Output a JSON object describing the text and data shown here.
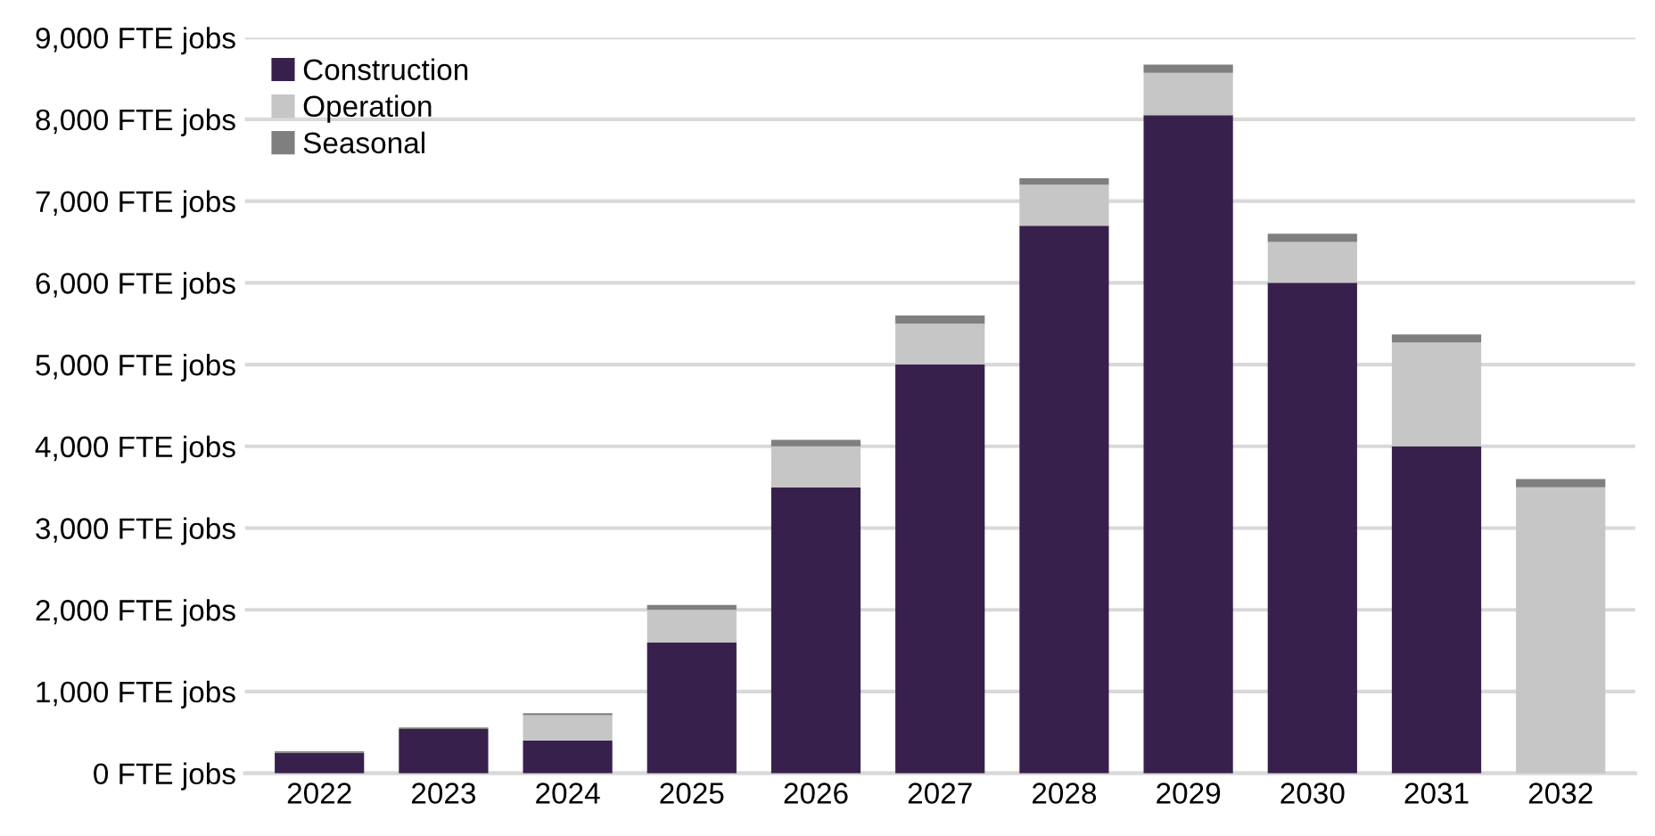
{
  "chart_data": {
    "type": "bar",
    "stacked": true,
    "categories": [
      "2022",
      "2023",
      "2024",
      "2025",
      "2026",
      "2027",
      "2028",
      "2029",
      "2030",
      "2031",
      "2032"
    ],
    "series": [
      {
        "name": "Construction",
        "color": "#38204d",
        "values": [
          250,
          540,
          400,
          1600,
          3500,
          5000,
          6700,
          8050,
          6000,
          4000,
          0
        ]
      },
      {
        "name": "Operation",
        "color": "#c6c6c6",
        "values": [
          0,
          0,
          310,
          400,
          500,
          500,
          500,
          520,
          500,
          1270,
          3500
        ]
      },
      {
        "name": "Seasonal",
        "color": "#7f7f7f",
        "values": [
          20,
          20,
          25,
          60,
          80,
          100,
          80,
          100,
          100,
          100,
          100
        ]
      }
    ],
    "ylim": [
      0,
      9000
    ],
    "yticks": [
      {
        "value": 0,
        "label": "0 FTE jobs"
      },
      {
        "value": 1000,
        "label": "1,000 FTE jobs"
      },
      {
        "value": 2000,
        "label": "2,000 FTE jobs"
      },
      {
        "value": 3000,
        "label": "3,000 FTE jobs"
      },
      {
        "value": 4000,
        "label": "4,000 FTE jobs"
      },
      {
        "value": 5000,
        "label": "5,000 FTE jobs"
      },
      {
        "value": 6000,
        "label": "6,000 FTE jobs"
      },
      {
        "value": 7000,
        "label": "7,000 FTE jobs"
      },
      {
        "value": 8000,
        "label": "8,000 FTE jobs"
      },
      {
        "value": 9000,
        "label": "9,000 FTE jobs"
      }
    ],
    "grid": "y",
    "legend": "top left"
  }
}
